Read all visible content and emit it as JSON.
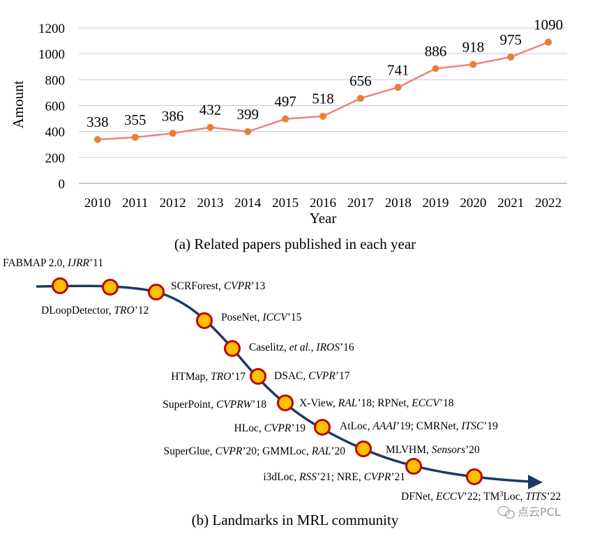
{
  "chart_data": {
    "type": "line",
    "categories": [
      "2010",
      "2011",
      "2012",
      "2013",
      "2014",
      "2015",
      "2016",
      "2017",
      "2018",
      "2019",
      "2020",
      "2021",
      "2022"
    ],
    "series": [
      {
        "name": "Related papers",
        "values": [
          338,
          355,
          386,
          432,
          399,
          497,
          518,
          656,
          741,
          886,
          918,
          975,
          1090
        ]
      }
    ],
    "data_labels": [
      "338",
      "355",
      "386",
      "432",
      "399",
      "497",
      "518",
      "656",
      "741",
      "886",
      "918",
      "975",
      "1090"
    ],
    "xlabel": "Year",
    "ylabel": "Amount",
    "ylim": [
      0,
      1200
    ],
    "yticks": [
      "0",
      "200",
      "400",
      "600",
      "800",
      "1000",
      "1200"
    ],
    "grid": true,
    "line_color": "#f08080",
    "marker_color": "#ed7d31",
    "caption": "(a) Related papers published in each year"
  },
  "timeline": {
    "caption": "(b) Landmarks in MRL community",
    "line_color": "#1f3864",
    "marker_fill": "#ffc000",
    "marker_stroke": "#c00000",
    "landmarks": [
      {
        "parts": [
          {
            "t": "FABMAP 2.0, "
          },
          {
            "t": "IJRR",
            "i": true
          },
          {
            "t": "’11"
          }
        ]
      },
      {
        "parts": [
          {
            "t": "DLoopDetector, "
          },
          {
            "t": "TRO",
            "i": true
          },
          {
            "t": "’12"
          }
        ]
      },
      {
        "parts": [
          {
            "t": "SCRForest, "
          },
          {
            "t": "CVPR",
            "i": true
          },
          {
            "t": "’13"
          }
        ]
      },
      {
        "parts": [
          {
            "t": "PoseNet, "
          },
          {
            "t": "ICCV",
            "i": true
          },
          {
            "t": "’15"
          }
        ]
      },
      {
        "parts": [
          {
            "t": "Caselitz, "
          },
          {
            "t": "et al., IROS",
            "i": true
          },
          {
            "t": "’16"
          }
        ]
      },
      {
        "parts": [
          {
            "t": "HTMap, "
          },
          {
            "t": "TRO",
            "i": true
          },
          {
            "t": "’17"
          }
        ]
      },
      {
        "parts": [
          {
            "t": "DSAC, "
          },
          {
            "t": "CVPR",
            "i": true
          },
          {
            "t": "’17"
          }
        ]
      },
      {
        "parts": [
          {
            "t": "SuperPoint, "
          },
          {
            "t": "CVPRW",
            "i": true
          },
          {
            "t": "’18"
          }
        ]
      },
      {
        "parts": [
          {
            "t": "X-View, "
          },
          {
            "t": "RAL",
            "i": true
          },
          {
            "t": "’18; RPNet, "
          },
          {
            "t": "ECCV",
            "i": true
          },
          {
            "t": "’18"
          }
        ]
      },
      {
        "parts": [
          {
            "t": "HLoc, "
          },
          {
            "t": "CVPR",
            "i": true
          },
          {
            "t": "’19"
          }
        ]
      },
      {
        "parts": [
          {
            "t": "AtLoc, "
          },
          {
            "t": "AAAI",
            "i": true
          },
          {
            "t": "’19; CMRNet, "
          },
          {
            "t": "ITSC",
            "i": true
          },
          {
            "t": "’19"
          }
        ]
      },
      {
        "parts": [
          {
            "t": "SuperGlue, "
          },
          {
            "t": "CVPR",
            "i": true
          },
          {
            "t": "’20; GMMLoc, "
          },
          {
            "t": "RAL",
            "i": true
          },
          {
            "t": "’20"
          }
        ]
      },
      {
        "parts": [
          {
            "t": "MLVHM, "
          },
          {
            "t": "Sensors",
            "i": true
          },
          {
            "t": "’20"
          }
        ]
      },
      {
        "parts": [
          {
            "t": "i3dLoc, "
          },
          {
            "t": "RSS",
            "i": true
          },
          {
            "t": "’21; NRE, "
          },
          {
            "t": "CVPR",
            "i": true
          },
          {
            "t": "’21"
          }
        ]
      },
      {
        "parts": [
          {
            "t": "DFNet, "
          },
          {
            "t": "ECCV",
            "i": true
          },
          {
            "t": "’22; TM"
          },
          {
            "t": "3",
            "sup": true
          },
          {
            "t": "Loc, "
          },
          {
            "t": "TITS",
            "i": true
          },
          {
            "t": "’22"
          }
        ]
      }
    ]
  },
  "watermark": "点云PCL"
}
